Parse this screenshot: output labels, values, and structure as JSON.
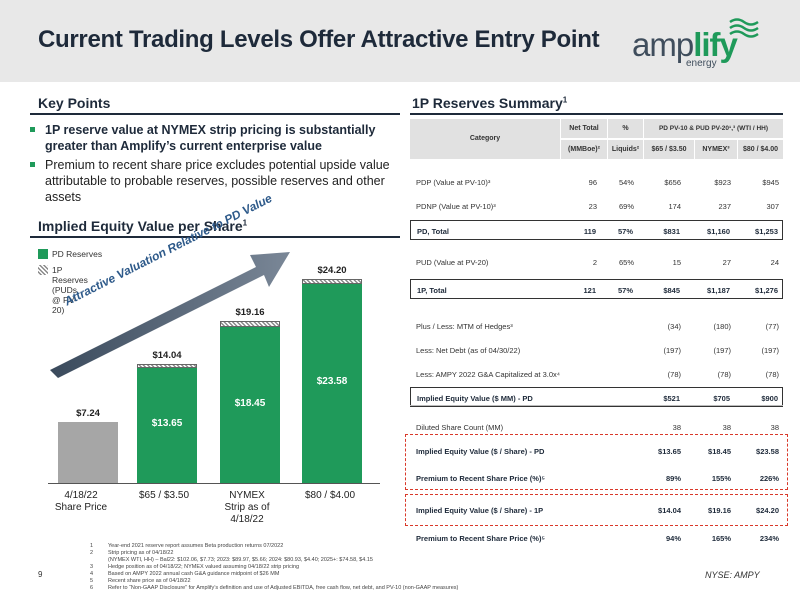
{
  "title": "Current Trading Levels Offer Attractive Entry Point",
  "logo": {
    "word_part1": "amp",
    "word_part2": "lify",
    "sub": "energy"
  },
  "key_points": {
    "heading": "Key Points",
    "bullets": [
      "1P reserve value at NYMEX strip pricing is substantially greater than Amplify’s current enterprise value",
      "Premium to recent share price excludes potential upside value attributable to probable reserves, possible reserves and other assets"
    ]
  },
  "equity_chart": {
    "heading": "Implied Equity Value per Share",
    "heading_sup": "1",
    "arrow_text": "Attractive Valuation Relative to PD Value",
    "legend": [
      {
        "label": "PD Reserves",
        "color": "#1f9a5a"
      },
      {
        "label": "1P Reserves\n(PUDs @ PV-20)",
        "color": "hatch"
      }
    ]
  },
  "chart_data": {
    "type": "bar",
    "categories": [
      "4/18/22\nShare Price",
      "$65 / $3.50",
      "NYMEX\nStrip as of 4/18/22",
      "$80 / $4.00"
    ],
    "series": [
      {
        "name": "PD Reserves",
        "values": [
          null,
          13.65,
          18.45,
          23.58
        ]
      },
      {
        "name": "1P Reserves (PUDs @ PV-20)",
        "values": [
          null,
          0.39,
          0.71,
          0.62
        ]
      }
    ],
    "share_price": 7.24,
    "totals": [
      "$7.24",
      "$14.04",
      "$19.16",
      "$24.20"
    ],
    "inner_labels": [
      "",
      "$13.65",
      "$18.45",
      "$23.58"
    ],
    "ylim": [
      0,
      26
    ]
  },
  "reserves": {
    "heading": "1P Reserves Summary",
    "heading_sup": "1",
    "header": {
      "category": "Category",
      "net_total": "Net Total",
      "net_total_unit": "(MMBoe)²",
      "pct": "%",
      "liquids": "Liquids²",
      "pv_title": "PD PV-10 & PUD PV-20¹,³ (WTI / HH)",
      "col_a": "$65 / $3.50",
      "col_b": "NYMEX³",
      "col_c": "$80 / $4.00"
    },
    "rows": [
      {
        "c0": "PDP (Value at PV-10)³",
        "c1": "96",
        "c2": "54%",
        "c3": "$656",
        "c4": "$923",
        "c5": "$945"
      },
      {
        "c0": "PDNP (Value at PV-10)³",
        "c1": "23",
        "c2": "69%",
        "c3": "174",
        "c4": "237",
        "c5": "307"
      },
      {
        "c0": "PD, Total",
        "c1": "119",
        "c2": "57%",
        "c3": "$831",
        "c4": "$1,160",
        "c5": "$1,253"
      },
      {
        "c0": "PUD (Value at PV-20)",
        "c1": "2",
        "c2": "65%",
        "c3": "15",
        "c4": "27",
        "c5": "24"
      },
      {
        "c0": "1P, Total",
        "c1": "121",
        "c2": "57%",
        "c3": "$845",
        "c4": "$1,187",
        "c5": "$1,276"
      },
      {
        "c0": "Plus / Less: MTM of Hedges³",
        "c1": "",
        "c2": "",
        "c3": "(34)",
        "c4": "(180)",
        "c5": "(77)"
      },
      {
        "c0": "Less: Net Debt (as of 04/30/22)",
        "c1": "",
        "c2": "",
        "c3": "(197)",
        "c4": "(197)",
        "c5": "(197)"
      },
      {
        "c0": "Less: AMPY 2022 G&A Capitalized at 3.0x⁴",
        "c1": "",
        "c2": "",
        "c3": "(78)",
        "c4": "(78)",
        "c5": "(78)"
      },
      {
        "c0": "Implied Equity Value ($ MM) - PD",
        "c1": "",
        "c2": "",
        "c3": "$521",
        "c4": "$705",
        "c5": "$900"
      },
      {
        "c0": "Diluted Share Count (MM)",
        "c1": "",
        "c2": "",
        "c3": "38",
        "c4": "38",
        "c5": "38"
      },
      {
        "c0": "Implied Equity Value ($ / Share) - PD",
        "c1": "",
        "c2": "",
        "c3": "$13.65",
        "c4": "$18.45",
        "c5": "$23.58"
      },
      {
        "c0": "Premium to Recent Share Price (%)⁵",
        "c1": "",
        "c2": "",
        "c3": "89%",
        "c4": "155%",
        "c5": "226%"
      },
      {
        "c0": "Implied Equity Value ($ / Share) - 1P",
        "c1": "",
        "c2": "",
        "c3": "$14.04",
        "c4": "$19.16",
        "c5": "$24.20"
      },
      {
        "c0": "Premium to Recent Share Price (%)⁵",
        "c1": "",
        "c2": "",
        "c3": "94%",
        "c4": "165%",
        "c5": "234%"
      }
    ]
  },
  "footnotes": [
    {
      "n": "1",
      "t": "Year-end 2021 reserve report assumes Beta production returns 07/2022"
    },
    {
      "n": "2",
      "t": "Strip pricing as of 04/18/22"
    },
    {
      "n": "",
      "t": "(NYMEX WTI, HH) – Bal22: $102.06, $7.73; 2023: $89.97, $5.66; 2024: $80.93, $4.40; 2025+: $74.58, $4.15"
    },
    {
      "n": "3",
      "t": "Hedge position as of 04/18/22; NYMEX valued assuming 04/18/22 strip pricing"
    },
    {
      "n": "4",
      "t": "Based on AMPY 2022 annual cash G&A guidance midpoint of $26 MM"
    },
    {
      "n": "5",
      "t": "Recent share price as of 04/18/22"
    },
    {
      "n": "6",
      "t": "Refer to “Non-GAAP Disclosure” for Amplify’s definition and use of Adjusted EBITDA, free cash flow, net debt, and PV-10 (non-GAAP measures)"
    }
  ],
  "page_number": "9",
  "ticker": "NYSE: AMPY"
}
